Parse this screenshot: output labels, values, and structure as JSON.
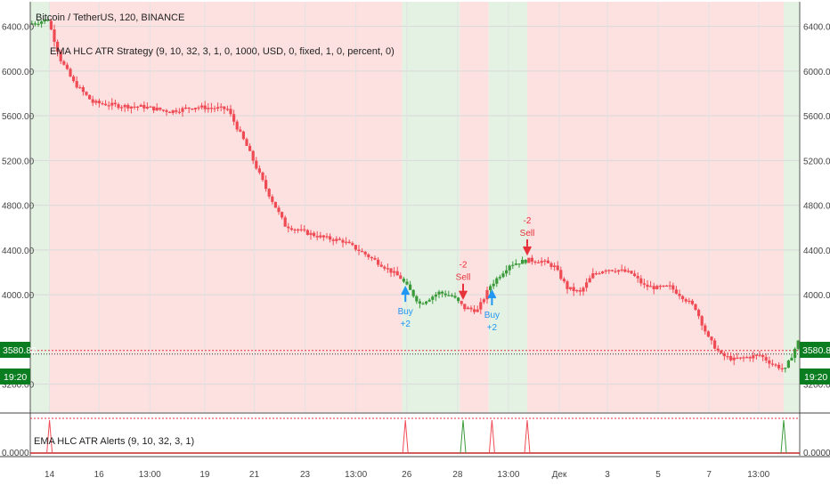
{
  "header": {
    "symbol": "Bitcoin / TetherUS, 120, BINANCE",
    "strategy": "EMA HLC ATR Strategy (9, 10, 32, 3, 1, 0, 1000, USD, 0, fixed, 1, 0, percent, 0)",
    "alerts": "EMA HLC ATR Alerts (9, 10, 32, 3, 1)"
  },
  "price_tags": {
    "last_price": "3580.82",
    "countdown": "19:20"
  },
  "colors": {
    "bull": "#3a9a3a",
    "bear": "#ef4b55",
    "bg_bull": "#e3f2e3",
    "bg_bear": "#fde0e0",
    "buy": "#2196f3",
    "sell": "#e5323b",
    "tag_bg": "#0a7d20"
  },
  "chart_data": {
    "type": "candlestick",
    "ylim": [
      2950,
      6620
    ],
    "y_ticks": [
      "6400.00",
      "6000.00",
      "5600.00",
      "5200.00",
      "4800.00",
      "4400.00",
      "4000.00",
      "3200.00"
    ],
    "x_ticks": [
      "14",
      "16",
      "13:00",
      "19",
      "21",
      "23",
      "13:00",
      "26",
      "28",
      "13:00",
      "Дек",
      "3",
      "5",
      "7",
      "13:00"
    ],
    "indicator_y_tick": "0.0000",
    "path": [
      [
        0,
        6420
      ],
      [
        3,
        6460
      ],
      [
        5,
        6100
      ],
      [
        7,
        5900
      ],
      [
        10,
        5720
      ],
      [
        14,
        5690
      ],
      [
        18,
        5680
      ],
      [
        22,
        5640
      ],
      [
        26,
        5680
      ],
      [
        31,
        5660
      ],
      [
        34,
        5330
      ],
      [
        37,
        4950
      ],
      [
        40,
        4620
      ],
      [
        43,
        4560
      ],
      [
        46,
        4510
      ],
      [
        49,
        4480
      ],
      [
        52,
        4380
      ],
      [
        55,
        4270
      ],
      [
        58,
        4150
      ],
      [
        61,
        3920
      ],
      [
        64,
        4020
      ],
      [
        66,
        3990
      ],
      [
        68,
        3880
      ],
      [
        70,
        3860
      ],
      [
        72,
        4080
      ],
      [
        75,
        4270
      ],
      [
        78,
        4310
      ],
      [
        80,
        4300
      ],
      [
        82,
        4250
      ],
      [
        84,
        4060
      ],
      [
        86,
        4020
      ],
      [
        88,
        4180
      ],
      [
        90,
        4230
      ],
      [
        92,
        4220
      ],
      [
        94,
        4190
      ],
      [
        96,
        4080
      ],
      [
        98,
        4060
      ],
      [
        100,
        4070
      ],
      [
        102,
        3980
      ],
      [
        104,
        3880
      ],
      [
        106,
        3610
      ],
      [
        108,
        3460
      ],
      [
        110,
        3420
      ],
      [
        112,
        3440
      ],
      [
        114,
        3460
      ],
      [
        116,
        3380
      ],
      [
        118,
        3330
      ],
      [
        120,
        3580
      ]
    ],
    "background_regimes": [
      {
        "from": 0,
        "to": 3,
        "side": "bull"
      },
      {
        "from": 3,
        "to": 58,
        "side": "bear"
      },
      {
        "from": 58,
        "to": 67,
        "side": "bull"
      },
      {
        "from": 67,
        "to": 71.5,
        "side": "bear"
      },
      {
        "from": 71.5,
        "to": 77.5,
        "side": "bull"
      },
      {
        "from": 77.5,
        "to": 117.5,
        "side": "bear"
      },
      {
        "from": 117.5,
        "to": 120,
        "side": "bull"
      }
    ],
    "signals": [
      {
        "type": "buy",
        "label": "Buy",
        "qty": "+2",
        "bar": 58.5
      },
      {
        "type": "sell",
        "label": "Sell",
        "qty": "-2",
        "bar": 67.5
      },
      {
        "type": "buy",
        "label": "Buy",
        "qty": "+2",
        "bar": 72
      },
      {
        "type": "sell",
        "label": "Sell",
        "qty": "-2",
        "bar": 77.5
      }
    ],
    "alert_spikes": [
      3,
      58.5,
      67.5,
      72,
      77.5,
      117.5
    ]
  }
}
